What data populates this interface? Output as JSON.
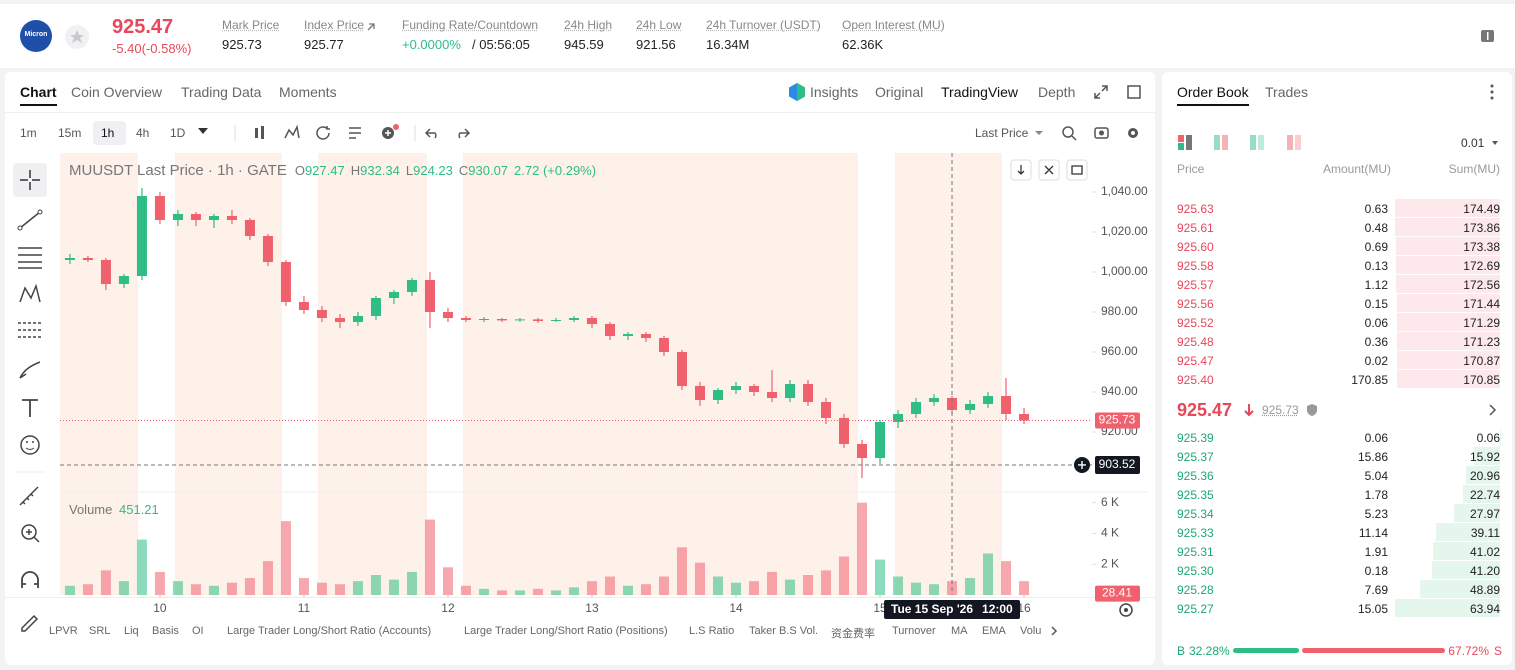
{
  "header": {
    "logo": "Micron",
    "price": "925.47",
    "change": "-5.40(-0.58%)",
    "stats": [
      {
        "label": "Mark Price",
        "value": "925.73"
      },
      {
        "label": "Index Price",
        "value": "925.77"
      },
      {
        "label": "Funding Rate/Countdown",
        "value": "+0.0000%",
        "countdown": "/ 05:56:05"
      },
      {
        "label": "24h High",
        "value": "945.59"
      },
      {
        "label": "24h Low",
        "value": "921.56"
      },
      {
        "label": "24h Turnover (USDT)",
        "value": "16.34M"
      },
      {
        "label": "Open Interest (MU)",
        "value": "62.36K"
      }
    ]
  },
  "chart_tabs": [
    "Chart",
    "Coin Overview",
    "Trading Data",
    "Moments"
  ],
  "view_tabs": [
    "Insights",
    "Original",
    "TradingView",
    "Depth"
  ],
  "intervals": [
    "1m",
    "15m",
    "1h",
    "4h",
    "1D"
  ],
  "price_source": "Last Price",
  "chart_data": {
    "type": "candlestick",
    "title": "MUUSDT Last Price · 1h · GATE",
    "ohlc_labels": [
      "O",
      "H",
      "L",
      "C"
    ],
    "ohlc_values": [
      "927.47",
      "932.34",
      "924.23",
      "930.07"
    ],
    "change": "2.72 (+0.29%)",
    "volume_title": "Volume",
    "volume_value": "451.21",
    "x": [
      9.375,
      9.5,
      9.625,
      9.75,
      9.875,
      10,
      10.125,
      10.25,
      10.375,
      10.5,
      10.625,
      10.75,
      10.875,
      11,
      11.125,
      11.25,
      11.375,
      11.5,
      11.625,
      11.75,
      11.875,
      12,
      12.125,
      12.25,
      12.375,
      12.5,
      12.625,
      12.75,
      12.875,
      13,
      13.125,
      13.25,
      13.375,
      13.5,
      13.625,
      13.75,
      13.875,
      14,
      14.125,
      14.25,
      14.375,
      14.5,
      14.625,
      14.75,
      14.875,
      15,
      15.125,
      15.25,
      15.375,
      15.5,
      15.625,
      15.75,
      15.875,
      16
    ],
    "open": [
      1006,
      1007,
      1006,
      994,
      998,
      1038,
      1026,
      1029,
      1026,
      1028,
      1026,
      1018,
      1005,
      985,
      981,
      977,
      975,
      978,
      987,
      990,
      996,
      980,
      977,
      976,
      976.5,
      975.8,
      976.3,
      975.5,
      976,
      977,
      974,
      968,
      969,
      967,
      960,
      943,
      936,
      941,
      943,
      940,
      937,
      944,
      935,
      927,
      914,
      907,
      925,
      929,
      935,
      937,
      931,
      934,
      938,
      929
    ],
    "high": [
      1009,
      1008,
      1007,
      999,
      1042,
      1040,
      1031,
      1030,
      1029,
      1031,
      1027,
      1019,
      1006,
      988,
      983,
      979,
      980,
      988,
      991,
      997,
      1000,
      982,
      978,
      977.5,
      977,
      977,
      977,
      977,
      978,
      978,
      975,
      970,
      970,
      968,
      961,
      945,
      942,
      945,
      944,
      951,
      946,
      946,
      937,
      929,
      916,
      926,
      931,
      937,
      939,
      938,
      936,
      940,
      947,
      932
    ],
    "low": [
      1004,
      1005,
      991,
      992,
      996,
      1024,
      1023,
      1023,
      1022,
      1024,
      1016,
      1003,
      983,
      979,
      975,
      972,
      973,
      976,
      984,
      988,
      972,
      975,
      975,
      975,
      975,
      975,
      974.5,
      975,
      975,
      972,
      966,
      966,
      965,
      958,
      941,
      933,
      934,
      939,
      938,
      935,
      935,
      933,
      924,
      912,
      897,
      904,
      922,
      927,
      933,
      929,
      929,
      932,
      926,
      924
    ],
    "close": [
      1007,
      1006,
      994,
      998,
      1038,
      1026,
      1029,
      1026,
      1028,
      1026,
      1018,
      1005,
      985,
      981,
      977,
      975,
      978,
      987,
      990,
      996,
      980,
      977,
      976,
      976.5,
      975.8,
      976.3,
      975.5,
      976,
      977,
      974,
      968,
      969,
      967,
      960,
      943,
      936,
      941,
      943,
      940,
      937,
      944,
      935,
      927,
      914,
      907,
      925,
      929,
      935,
      937,
      931,
      934,
      938,
      929,
      925.73
    ],
    "volume": [
      600,
      700,
      1600,
      900,
      3600,
      1500,
      900,
      700,
      600,
      800,
      1100,
      2200,
      4800,
      1100,
      800,
      700,
      900,
      1300,
      1000,
      1500,
      4900,
      1800,
      600,
      400,
      300,
      300,
      400,
      300,
      500,
      900,
      1200,
      600,
      700,
      1200,
      3100,
      2100,
      1200,
      800,
      900,
      1500,
      1000,
      1300,
      1600,
      2500,
      6000,
      2300,
      1200,
      800,
      700,
      900,
      1100,
      2700,
      2200,
      900
    ],
    "up_color": "#2ebd85",
    "down_color": "#f0616d",
    "xlim": [
      9.306,
      16.472
    ],
    "xticks": [
      10,
      11,
      12,
      13,
      14,
      15,
      16
    ],
    "ylim": [
      891,
      1059.5
    ],
    "yticks": [
      {
        "value": 1040,
        "label": "1,040.00"
      },
      {
        "value": 1020,
        "label": "1,020.00"
      },
      {
        "value": 1000,
        "label": "1,000.00"
      },
      {
        "value": 980,
        "label": "980.00"
      },
      {
        "value": 960,
        "label": "960.00"
      },
      {
        "value": 940,
        "label": "940.00"
      },
      {
        "value": 920,
        "label": "920.00"
      }
    ],
    "volume_ylim": [
      0,
      6500
    ],
    "volume_yticks": [
      {
        "value": 6000,
        "label": "6 K"
      },
      {
        "value": 4000,
        "label": "4 K"
      },
      {
        "value": 2000,
        "label": "2 K"
      }
    ],
    "last_price": 925.73,
    "crosshair_price": 903.52,
    "crosshair_x": 15.5,
    "crosshair_label": [
      "Tue 15 Sep '26",
      "12:00"
    ],
    "last_volume": 28.41
  },
  "indicators": [
    "LPVR",
    "SRL",
    "Liq",
    "Basis",
    "OI",
    "Large Trader Long/Short Ratio (Accounts)",
    "Large Trader Long/Short Ratio (Positions)",
    "L.S Ratio",
    "Taker B.S Vol.",
    "资金费率",
    "Turnover",
    "MA",
    "EMA",
    "Volu"
  ],
  "order_book": {
    "tabs": [
      "Order Book",
      "Trades"
    ],
    "tick": "0.01",
    "columns": [
      "Price",
      "Amount(MU)",
      "Sum(MU)"
    ],
    "asks": [
      [
        "925.63",
        "0.63",
        "174.49"
      ],
      [
        "925.61",
        "0.48",
        "173.86"
      ],
      [
        "925.60",
        "0.69",
        "173.38"
      ],
      [
        "925.58",
        "0.13",
        "172.69"
      ],
      [
        "925.57",
        "1.12",
        "172.56"
      ],
      [
        "925.56",
        "0.15",
        "171.44"
      ],
      [
        "925.52",
        "0.06",
        "171.29"
      ],
      [
        "925.48",
        "0.36",
        "171.23"
      ],
      [
        "925.47",
        "0.02",
        "170.87"
      ],
      [
        "925.40",
        "170.85",
        "170.85"
      ]
    ],
    "mid_price": "925.47",
    "mark_price": "925.73",
    "bids": [
      [
        "925.39",
        "0.06",
        "0.06"
      ],
      [
        "925.37",
        "15.86",
        "15.92"
      ],
      [
        "925.36",
        "5.04",
        "20.96"
      ],
      [
        "925.35",
        "1.78",
        "22.74"
      ],
      [
        "925.34",
        "5.23",
        "27.97"
      ],
      [
        "925.33",
        "11.14",
        "39.11"
      ],
      [
        "925.31",
        "1.91",
        "41.02"
      ],
      [
        "925.30",
        "0.18",
        "41.20"
      ],
      [
        "925.28",
        "7.69",
        "48.89"
      ],
      [
        "925.27",
        "15.05",
        "63.94"
      ]
    ],
    "ratio": {
      "buy_label": "B",
      "buy": 32.28,
      "buy_text": "32.28%",
      "sell": 67.72,
      "sell_text": "67.72%",
      "sell_label": "S"
    }
  }
}
